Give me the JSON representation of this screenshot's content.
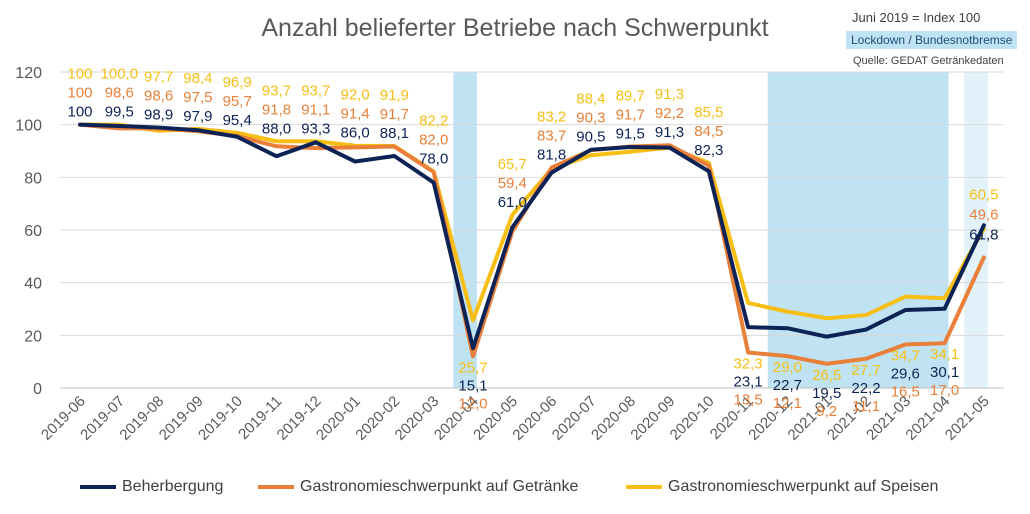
{
  "title": "Anzahl belieferter Betriebe nach Schwerpunkt",
  "notes": {
    "index": "Juni 2019 = Index 100",
    "lockdown": "Lockdown / Bundesnotbremse",
    "source": "Quelle: GEDAT Getränkedaten"
  },
  "colors": {
    "beherbergung": "#0D2356",
    "getraenke": "#E8803A",
    "speisen": "#F7BF14",
    "lockdown_band": "#BFE3F2",
    "lockdown_band_light": "#E2F2FA",
    "axis_text": "#595959",
    "grid": "#D9D9D9"
  },
  "chart_data": {
    "type": "line",
    "title": "Anzahl belieferter Betriebe nach Schwerpunkt",
    "xlabel": "",
    "ylabel": "",
    "ylim": [
      0,
      120
    ],
    "yticks": [
      "0",
      "20",
      "40",
      "60",
      "80",
      "100",
      "120"
    ],
    "categories": [
      "2019-06",
      "2019-07",
      "2019-08",
      "2019-09",
      "2019-10",
      "2019-11",
      "2019-12",
      "2020-01",
      "2020-02",
      "2020-03",
      "2020-04",
      "2020-05",
      "2020-06",
      "2020-07",
      "2020-08",
      "2020-09",
      "2020-10",
      "2020-11",
      "2020-12",
      "2021-01",
      "2021-02",
      "2021-03",
      "2021-04",
      "2021-05"
    ],
    "lockdown_periods": [
      {
        "from": "2020-03",
        "to": "2020-04",
        "shade": "dark"
      },
      {
        "from": "2020-11",
        "to": "2021-04",
        "shade": "dark"
      },
      {
        "from": "2021-04",
        "to": "2021-05",
        "shade": "light"
      }
    ],
    "series": [
      {
        "key": "beherbergung",
        "name": "Beherbergung",
        "values": [
          100,
          99.5,
          98.9,
          97.9,
          95.4,
          88.0,
          93.3,
          86.0,
          88.1,
          78.0,
          15.1,
          61.0,
          81.8,
          90.5,
          91.5,
          91.3,
          82.3,
          23.1,
          22.7,
          19.5,
          22.2,
          29.6,
          30.1,
          61.8
        ],
        "labels": [
          "100",
          "99,5",
          "98,9",
          "97,9",
          "95,4",
          "88,0",
          "93,3",
          "86,0",
          "88,1",
          "78,0",
          "15,1",
          "61,0",
          "81,8",
          "90,5",
          "91,5",
          "91,3",
          "82,3",
          "23,1",
          "22,7",
          "19,5",
          "22,2",
          "29,6",
          "30,1",
          "61,8"
        ]
      },
      {
        "key": "getraenke",
        "name": "Gastronomieschwerpunkt auf Getränke",
        "values": [
          100,
          98.6,
          98.6,
          97.5,
          95.7,
          91.8,
          91.1,
          91.4,
          91.7,
          82.0,
          12.0,
          59.4,
          83.7,
          90.3,
          91.7,
          92.2,
          84.5,
          13.5,
          12.1,
          9.2,
          11.1,
          16.5,
          17.0,
          49.6
        ],
        "labels": [
          "100",
          "98,6",
          "98,6",
          "97,5",
          "95,7",
          "91,8",
          "91,1",
          "91,4",
          "91,7",
          "82,0",
          "12,0",
          "59,4",
          "83,7",
          "90,3",
          "91,7",
          "92,2",
          "84,5",
          "13,5",
          "12,1",
          "9,2",
          "11,1",
          "16,5",
          "17,0",
          "49,6"
        ]
      },
      {
        "key": "speisen",
        "name": "Gastronomieschwerpunkt auf Speisen",
        "values": [
          100,
          100.0,
          97.7,
          98.4,
          96.9,
          93.7,
          93.7,
          92.0,
          91.9,
          82.2,
          25.7,
          65.7,
          83.2,
          88.4,
          89.7,
          91.3,
          85.5,
          32.3,
          29.0,
          26.5,
          27.7,
          34.7,
          34.1,
          60.5
        ],
        "labels": [
          "100",
          "100,0",
          "97,7",
          "98,4",
          "96,9",
          "93,7",
          "93,7",
          "92,0",
          "91,9",
          "82,2",
          "25,7",
          "65,7",
          "83,2",
          "88,4",
          "89,7",
          "91,3",
          "85,5",
          "32,3",
          "29,0",
          "26,5",
          "27,7",
          "34,7",
          "34,1",
          "60,5"
        ]
      }
    ]
  }
}
